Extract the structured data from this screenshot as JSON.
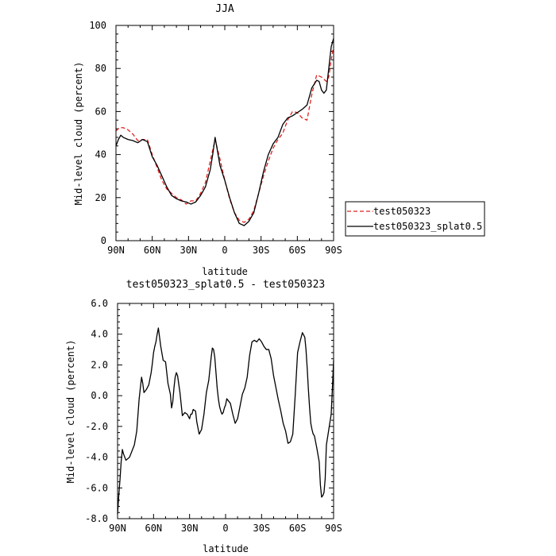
{
  "chart_data": [
    {
      "type": "line",
      "title": "JJA",
      "xlabel": "latitude",
      "ylabel": "Mid-level cloud (percent)",
      "xlim": [
        90,
        -90
      ],
      "ylim": [
        0,
        100
      ],
      "x_ticks": [
        90,
        60,
        30,
        0,
        -30,
        -60,
        -90
      ],
      "x_tick_labels": [
        "90N",
        "60N",
        "30N",
        "0",
        "30S",
        "60S",
        "90S"
      ],
      "y_ticks": [
        0,
        20,
        40,
        60,
        80,
        100
      ],
      "y_tick_labels": [
        "0",
        "20",
        "40",
        "60",
        "80",
        "100"
      ],
      "legend": "outside-right",
      "series": [
        {
          "name": "test050323",
          "color": "#e02020",
          "dash": "dashed",
          "x": [
            90,
            87,
            84,
            80,
            76,
            72,
            68,
            64,
            60,
            56,
            52,
            48,
            44,
            40,
            36,
            32,
            28,
            24,
            20,
            16,
            12,
            8,
            4,
            0,
            -4,
            -8,
            -12,
            -16,
            -20,
            -24,
            -28,
            -32,
            -36,
            -40,
            -44,
            -48,
            -52,
            -56,
            -60,
            -64,
            -68,
            -72,
            -76,
            -80,
            -84,
            -86,
            -88,
            -90
          ],
          "y": [
            51,
            52.5,
            52.5,
            51.5,
            49.5,
            46.5,
            47,
            47,
            40,
            34,
            28,
            24,
            22,
            20,
            19,
            17,
            18.5,
            18.5,
            22,
            27,
            37,
            47,
            38,
            28,
            19.5,
            13,
            9.5,
            8.5,
            10,
            14,
            22,
            30,
            37,
            43,
            47,
            50,
            56,
            60,
            59.5,
            57,
            56,
            68,
            77,
            76,
            74,
            76,
            84,
            90
          ]
        },
        {
          "name": "test050323_splat0.5",
          "color": "#000000",
          "dash": "solid",
          "x": [
            90,
            88,
            86,
            84,
            80,
            76,
            72,
            68,
            64,
            60,
            56,
            52,
            48,
            44,
            40,
            36,
            32,
            30,
            28,
            24,
            20,
            16,
            12,
            10,
            8,
            4,
            0,
            -4,
            -8,
            -12,
            -16,
            -20,
            -24,
            -28,
            -32,
            -36,
            -40,
            -44,
            -48,
            -52,
            -56,
            -60,
            -64,
            -68,
            -70,
            -72,
            -76,
            -78,
            -80,
            -82,
            -84,
            -86,
            -88,
            -90
          ],
          "y": [
            44,
            47,
            49,
            48,
            47,
            46.5,
            45.5,
            47,
            46,
            39,
            35,
            30,
            25,
            21,
            19.5,
            18.5,
            18,
            17.5,
            17,
            18,
            21,
            25,
            33,
            40,
            48,
            35,
            28,
            20,
            13,
            8,
            7,
            9,
            13,
            22,
            32,
            40,
            45,
            48,
            54,
            57,
            58,
            59.5,
            61,
            63,
            67,
            71,
            74.5,
            74,
            70,
            68.5,
            70,
            80,
            90,
            94
          ]
        }
      ]
    },
    {
      "type": "line",
      "title": "test050323_splat0.5 - test050323",
      "xlabel": "latitude",
      "ylabel": "Mid-level cloud (percent)",
      "xlim": [
        90,
        -90
      ],
      "ylim": [
        -8,
        6
      ],
      "x_ticks": [
        90,
        60,
        30,
        0,
        -30,
        -60,
        -90
      ],
      "x_tick_labels": [
        "90N",
        "60N",
        "30N",
        "0",
        "30S",
        "60S",
        "90S"
      ],
      "y_ticks": [
        -8,
        -6,
        -4,
        -2,
        0,
        2,
        4,
        6
      ],
      "y_tick_labels": [
        "-8.0",
        "-6.0",
        "-4.0",
        "-2.0",
        "0.0",
        "2.0",
        "4.0",
        "6.0"
      ],
      "series": [
        {
          "color": "#000000",
          "dash": "solid",
          "x": [
            90,
            89,
            88,
            87,
            86,
            85,
            83,
            80,
            78,
            76,
            74,
            72,
            71,
            70,
            69,
            68,
            66,
            64,
            62,
            61,
            60,
            59,
            58,
            57,
            56,
            54,
            52,
            50,
            48,
            46,
            45,
            44,
            43,
            42,
            41,
            40,
            38,
            36,
            34,
            32,
            30,
            29,
            28,
            27,
            25,
            24,
            22,
            20,
            18,
            16,
            14,
            12,
            11,
            10,
            9,
            8,
            7,
            6,
            5,
            4,
            3,
            2,
            1,
            0,
            -1,
            -2,
            -4,
            -6,
            -8,
            -10,
            -12,
            -14,
            -16,
            -18,
            -20,
            -22,
            -24,
            -26,
            -28,
            -30,
            -32,
            -34,
            -36,
            -38,
            -40,
            -42,
            -44,
            -46,
            -48,
            -50,
            -52,
            -54,
            -56,
            -58,
            -60,
            -62,
            -64,
            -66,
            -67,
            -68,
            -69,
            -70,
            -71,
            -72,
            -73,
            -74,
            -76,
            -78,
            -79,
            -80,
            -81,
            -82,
            -83,
            -84,
            -86,
            -88,
            -89,
            -90
          ],
          "y": [
            -7.7,
            -6.5,
            -5.5,
            -4.3,
            -3.5,
            -3.8,
            -4.2,
            -4,
            -3.6,
            -3.2,
            -2.3,
            -0.2,
            0.5,
            1.2,
            0.8,
            0.2,
            0.4,
            0.7,
            1.5,
            2.1,
            2.8,
            3.2,
            3.5,
            4,
            4.4,
            3.2,
            2.3,
            2.2,
            0.8,
            0.1,
            -0.8,
            -0.4,
            0.5,
            1.2,
            1.5,
            1.3,
            0.2,
            -1.3,
            -1.1,
            -1.2,
            -1.5,
            -1.2,
            -1.2,
            -0.9,
            -1,
            -1.7,
            -2.5,
            -2.2,
            -1.2,
            0.2,
            1,
            2.5,
            3.1,
            3,
            2.5,
            1.5,
            0.5,
            -0.2,
            -0.7,
            -1,
            -1.2,
            -1.1,
            -0.8,
            -0.6,
            -0.2,
            -0.3,
            -0.5,
            -1.2,
            -1.8,
            -1.5,
            -0.7,
            0.1,
            0.5,
            1.2,
            2.6,
            3.5,
            3.6,
            3.5,
            3.7,
            3.5,
            3.2,
            3,
            3,
            2.4,
            1.3,
            0.5,
            -0.3,
            -1,
            -1.8,
            -2.3,
            -3.1,
            -3,
            -2.5,
            0,
            2.8,
            3.5,
            4.1,
            3.8,
            3,
            1.8,
            0.4,
            -0.8,
            -1.8,
            -2.2,
            -2.5,
            -2.6,
            -3.4,
            -4.3,
            -5.8,
            -6.6,
            -6.5,
            -6.3,
            -5.4,
            -3.2,
            -2.2,
            -1.2,
            0.5,
            2.3
          ]
        }
      ]
    }
  ]
}
